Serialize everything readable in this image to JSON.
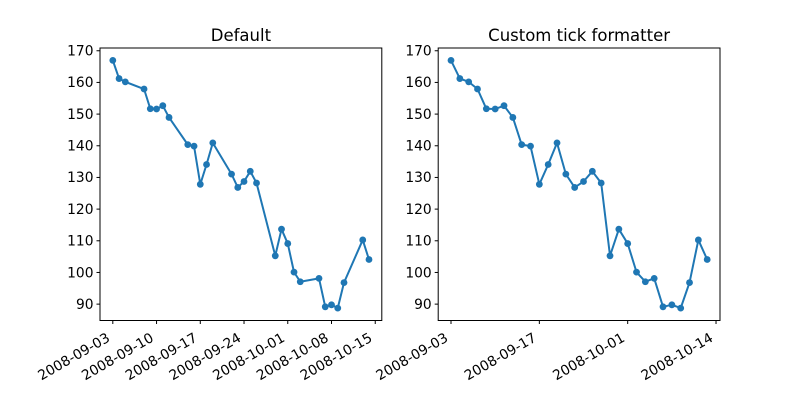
{
  "figure": {
    "background": "#ffffff",
    "left_title": "Default",
    "right_title": "Custom tick formatter"
  },
  "chart_data": [
    {
      "type": "line",
      "title": "Default",
      "x_mode": "date",
      "marker": "o",
      "line_color": "#1f77b4",
      "grid": false,
      "legend": "none",
      "dates": [
        "2008-09-03",
        "2008-09-04",
        "2008-09-05",
        "2008-09-08",
        "2008-09-09",
        "2008-09-10",
        "2008-09-11",
        "2008-09-12",
        "2008-09-15",
        "2008-09-16",
        "2008-09-17",
        "2008-09-18",
        "2008-09-19",
        "2008-09-22",
        "2008-09-23",
        "2008-09-24",
        "2008-09-25",
        "2008-09-26",
        "2008-09-29",
        "2008-09-30",
        "2008-10-01",
        "2008-10-02",
        "2008-10-03",
        "2008-10-06",
        "2008-10-07",
        "2008-10-08",
        "2008-10-09",
        "2008-10-10",
        "2008-10-13",
        "2008-10-14"
      ],
      "values": [
        166.96,
        161.22,
        160.18,
        157.92,
        151.68,
        151.61,
        152.65,
        148.94,
        140.36,
        139.88,
        127.83,
        134.09,
        140.91,
        131.05,
        126.84,
        128.71,
        131.93,
        128.24,
        105.26,
        113.66,
        109.12,
        100.1,
        97.07,
        98.14,
        89.16,
        89.79,
        88.74,
        96.8,
        110.26,
        104.08
      ],
      "x_tick_positions": [
        0,
        7,
        14,
        21,
        28,
        35,
        42
      ],
      "x_tick_labels": [
        "2008-09-03",
        "2008-09-10",
        "2008-09-17",
        "2008-09-24",
        "2008-10-01",
        "2008-10-08",
        "2008-10-15"
      ],
      "y_ticks": [
        90,
        100,
        110,
        120,
        130,
        140,
        150,
        160,
        170
      ],
      "xlim": [
        -2.05,
        43.05
      ],
      "ylim": [
        84.83,
        170.87
      ]
    },
    {
      "type": "line",
      "title": "Custom tick formatter",
      "x_mode": "index",
      "marker": "o",
      "line_color": "#1f77b4",
      "grid": false,
      "legend": "none",
      "dates": [
        "2008-09-03",
        "2008-09-04",
        "2008-09-05",
        "2008-09-08",
        "2008-09-09",
        "2008-09-10",
        "2008-09-11",
        "2008-09-12",
        "2008-09-15",
        "2008-09-16",
        "2008-09-17",
        "2008-09-18",
        "2008-09-19",
        "2008-09-22",
        "2008-09-23",
        "2008-09-24",
        "2008-09-25",
        "2008-09-26",
        "2008-09-29",
        "2008-09-30",
        "2008-10-01",
        "2008-10-02",
        "2008-10-03",
        "2008-10-06",
        "2008-10-07",
        "2008-10-08",
        "2008-10-09",
        "2008-10-10",
        "2008-10-13",
        "2008-10-14"
      ],
      "values": [
        166.96,
        161.22,
        160.18,
        157.92,
        151.68,
        151.61,
        152.65,
        148.94,
        140.36,
        139.88,
        127.83,
        134.09,
        140.91,
        131.05,
        126.84,
        128.71,
        131.93,
        128.24,
        105.26,
        113.66,
        109.12,
        100.1,
        97.07,
        98.14,
        89.16,
        89.79,
        88.74,
        96.8,
        110.26,
        104.08
      ],
      "x_tick_positions": [
        0,
        10,
        20,
        30
      ],
      "x_tick_labels": [
        "2008-09-03",
        "2008-09-17",
        "2008-10-01",
        "2008-10-14"
      ],
      "y_ticks": [
        90,
        100,
        110,
        120,
        130,
        140,
        150,
        160,
        170
      ],
      "xlim": [
        -1.45,
        30.45
      ],
      "ylim": [
        84.83,
        170.87
      ]
    }
  ]
}
